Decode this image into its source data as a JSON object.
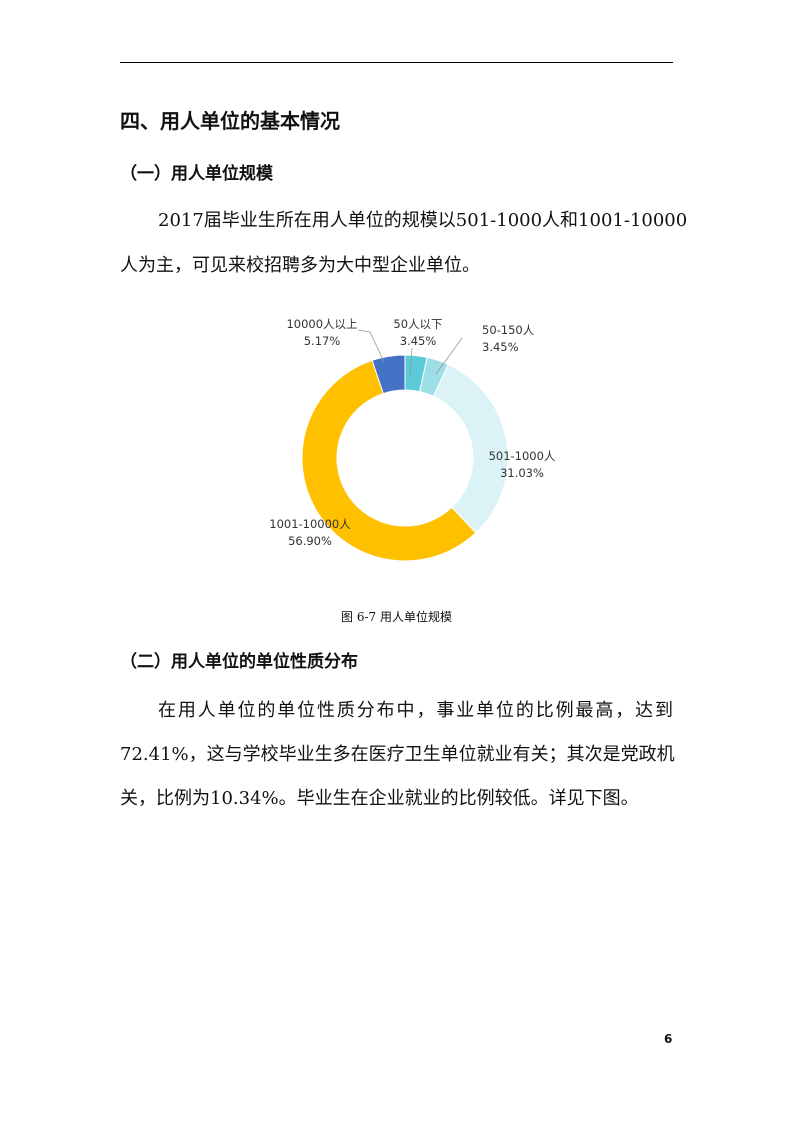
{
  "heading": "四、用人单位的基本情况",
  "section1": {
    "title": "（一）用人单位规模",
    "lines": [
      "2017届毕业生所在用人单位的规模以501-1000人和1001-10000",
      "人为主，可见来校招聘多为大中型企业单位。"
    ]
  },
  "figure_caption": "图 6-7  用人单位规模",
  "chart_data": {
    "type": "pie",
    "subtype": "donut",
    "title": "",
    "categories": [
      "50人以下",
      "50-150人",
      "501-1000人",
      "1001-10000人",
      "10000人以上"
    ],
    "values": [
      3.45,
      3.45,
      31.03,
      56.9,
      5.17
    ],
    "labels": [
      "3.45%",
      "3.45%",
      "31.03%",
      "56.90%",
      "5.17%"
    ],
    "colors": [
      "#5BCBDA",
      "#9EDFE7",
      "#DBF2F7",
      "#FFC000",
      "#4472C4"
    ],
    "legend": "none",
    "start": "top",
    "direction": "clockwise"
  },
  "section2": {
    "title": "（二）用人单位的单位性质分布",
    "lines": [
      "在用人单位的单位性质分布中，事业单位的比例最高，达到",
      "72.41%，这与学校毕业生多在医疗卫生单位就业有关；其次是党政机",
      "关，比例为10.34%。毕业生在企业就业的比例较低。详见下图。"
    ]
  },
  "page_number": "6"
}
